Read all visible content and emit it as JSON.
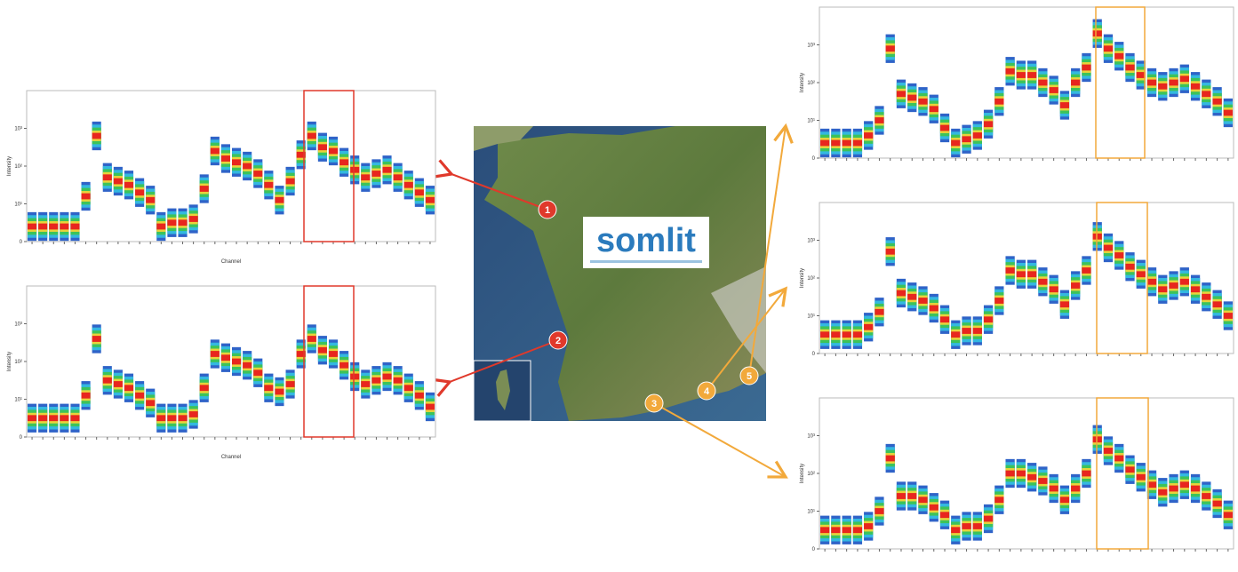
{
  "logo": "somlit",
  "sites": [
    "1",
    "2",
    "3",
    "4",
    "5"
  ],
  "panels": [
    {
      "ylabel": "Intensity",
      "xlabel": "Channel",
      "ylim": [
        0,
        4
      ],
      "yticks": [
        {
          "value": 0,
          "label": "0"
        },
        {
          "value": 1,
          "label": "10¹"
        },
        {
          "value": 2,
          "label": "10²"
        },
        {
          "value": 3,
          "label": "10³"
        }
      ],
      "values": [
        0.4,
        0.4,
        0.4,
        0.4,
        0.4,
        1.2,
        2.8,
        1.7,
        1.6,
        1.5,
        1.3,
        1.1,
        0.4,
        0.5,
        0.5,
        0.6,
        1.4,
        2.4,
        2.2,
        2.1,
        2.0,
        1.8,
        1.5,
        1.1,
        1.6,
        2.3,
        2.8,
        2.5,
        2.4,
        2.1,
        1.9,
        1.7,
        1.8,
        1.9,
        1.7,
        1.5,
        1.3,
        1.1
      ]
    },
    {
      "ylabel": "Intensity",
      "xlabel": "Channel",
      "ylim": [
        0,
        4
      ],
      "yticks": [
        {
          "value": 0,
          "label": "0"
        },
        {
          "value": 1,
          "label": "10¹"
        },
        {
          "value": 2,
          "label": "10²"
        },
        {
          "value": 3,
          "label": "10³"
        }
      ],
      "values": [
        0.5,
        0.5,
        0.5,
        0.5,
        0.5,
        1.1,
        2.6,
        1.5,
        1.4,
        1.3,
        1.1,
        0.9,
        0.5,
        0.5,
        0.5,
        0.6,
        1.3,
        2.2,
        2.1,
        2.0,
        1.9,
        1.7,
        1.3,
        1.2,
        1.4,
        2.2,
        2.6,
        2.3,
        2.2,
        1.9,
        1.6,
        1.4,
        1.5,
        1.6,
        1.5,
        1.3,
        1.1,
        0.8
      ]
    },
    {
      "ylabel": "Intensity",
      "ylim": [
        0,
        4
      ],
      "yticks": [
        {
          "value": 0,
          "label": "0"
        },
        {
          "value": 1,
          "label": "10¹"
        },
        {
          "value": 2,
          "label": "10²"
        },
        {
          "value": 3,
          "label": "10³"
        }
      ],
      "values": [
        0.4,
        0.4,
        0.4,
        0.4,
        0.6,
        1.0,
        2.9,
        1.7,
        1.6,
        1.5,
        1.3,
        0.8,
        0.4,
        0.5,
        0.6,
        0.9,
        1.5,
        2.3,
        2.2,
        2.2,
        2.0,
        1.8,
        1.4,
        2.0,
        2.4,
        3.3,
        2.9,
        2.7,
        2.4,
        2.2,
        2.0,
        1.9,
        2.0,
        2.1,
        1.9,
        1.7,
        1.5,
        1.2
      ]
    },
    {
      "ylabel": "Intensity",
      "ylim": [
        0,
        4
      ],
      "yticks": [
        {
          "value": 0,
          "label": "0"
        },
        {
          "value": 1,
          "label": "10¹"
        },
        {
          "value": 2,
          "label": "10²"
        },
        {
          "value": 3,
          "label": "10³"
        }
      ],
      "values": [
        0.5,
        0.5,
        0.5,
        0.5,
        0.7,
        1.1,
        2.7,
        1.6,
        1.5,
        1.4,
        1.2,
        0.9,
        0.5,
        0.6,
        0.6,
        0.9,
        1.4,
        2.2,
        2.1,
        2.1,
        1.9,
        1.7,
        1.3,
        1.8,
        2.2,
        3.1,
        2.8,
        2.6,
        2.3,
        2.1,
        1.9,
        1.7,
        1.8,
        1.9,
        1.7,
        1.5,
        1.3,
        1.0
      ]
    },
    {
      "ylabel": "Intensity",
      "ylim": [
        0,
        4
      ],
      "yticks": [
        {
          "value": 0,
          "label": "0"
        },
        {
          "value": 1,
          "label": "10¹"
        },
        {
          "value": 2,
          "label": "10²"
        },
        {
          "value": 3,
          "label": "10³"
        }
      ],
      "values": [
        0.5,
        0.5,
        0.5,
        0.5,
        0.6,
        1.0,
        2.4,
        1.4,
        1.4,
        1.3,
        1.1,
        0.9,
        0.5,
        0.6,
        0.6,
        0.8,
        1.3,
        2.0,
        2.0,
        1.9,
        1.8,
        1.6,
        1.3,
        1.6,
        2.0,
        2.9,
        2.6,
        2.4,
        2.1,
        1.9,
        1.7,
        1.5,
        1.6,
        1.7,
        1.6,
        1.4,
        1.2,
        0.9
      ]
    }
  ]
}
